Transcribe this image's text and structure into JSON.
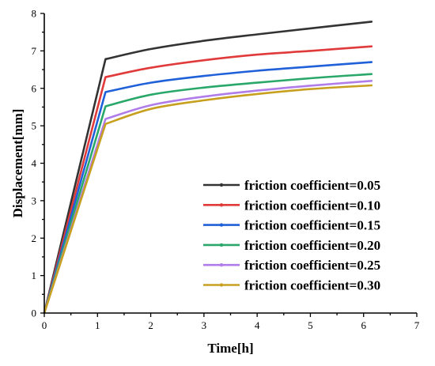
{
  "chart_data": {
    "type": "line",
    "title": "",
    "xlabel": "Time[h]",
    "ylabel": "Displacement[mm]",
    "xlim": [
      0,
      7
    ],
    "ylim": [
      0,
      8
    ],
    "xticks": [
      "0",
      "1",
      "2",
      "3",
      "4",
      "5",
      "6",
      "7"
    ],
    "yticks": [
      "0",
      "1",
      "2",
      "3",
      "4",
      "5",
      "6",
      "7",
      "8"
    ],
    "grid": false,
    "legend_position": "bottom-right",
    "series": [
      {
        "name": "friction coefficient=0.05",
        "color": "#333333",
        "x": [
          0,
          1.15,
          2,
          3,
          4,
          5,
          6.15
        ],
        "y": [
          0,
          6.78,
          7.05,
          7.27,
          7.44,
          7.6,
          7.78
        ]
      },
      {
        "name": "friction coefficient=0.10",
        "color": "#e03a3a",
        "x": [
          0,
          1.15,
          2,
          3,
          4,
          5,
          6.15
        ],
        "y": [
          0,
          6.3,
          6.55,
          6.75,
          6.9,
          7.0,
          7.12
        ]
      },
      {
        "name": "friction coefficient=0.15",
        "color": "#2060d8",
        "x": [
          0,
          1.15,
          2,
          3,
          4,
          5,
          6.15
        ],
        "y": [
          0,
          5.9,
          6.15,
          6.33,
          6.47,
          6.58,
          6.7
        ]
      },
      {
        "name": "friction coefficient=0.20",
        "color": "#2aa86a",
        "x": [
          0,
          1.15,
          2,
          3,
          4,
          5,
          6.15
        ],
        "y": [
          0,
          5.52,
          5.83,
          6.02,
          6.15,
          6.27,
          6.38
        ]
      },
      {
        "name": "friction coefficient=0.25",
        "color": "#b07ce8",
        "x": [
          0,
          1.15,
          2,
          3,
          4,
          5,
          6.15
        ],
        "y": [
          0,
          5.18,
          5.55,
          5.78,
          5.94,
          6.07,
          6.2
        ]
      },
      {
        "name": "friction coefficient=0.30",
        "color": "#c8a020",
        "x": [
          0,
          1.15,
          2,
          3,
          4,
          5,
          6.15
        ],
        "y": [
          0,
          5.05,
          5.45,
          5.68,
          5.85,
          5.98,
          6.08
        ]
      }
    ]
  }
}
